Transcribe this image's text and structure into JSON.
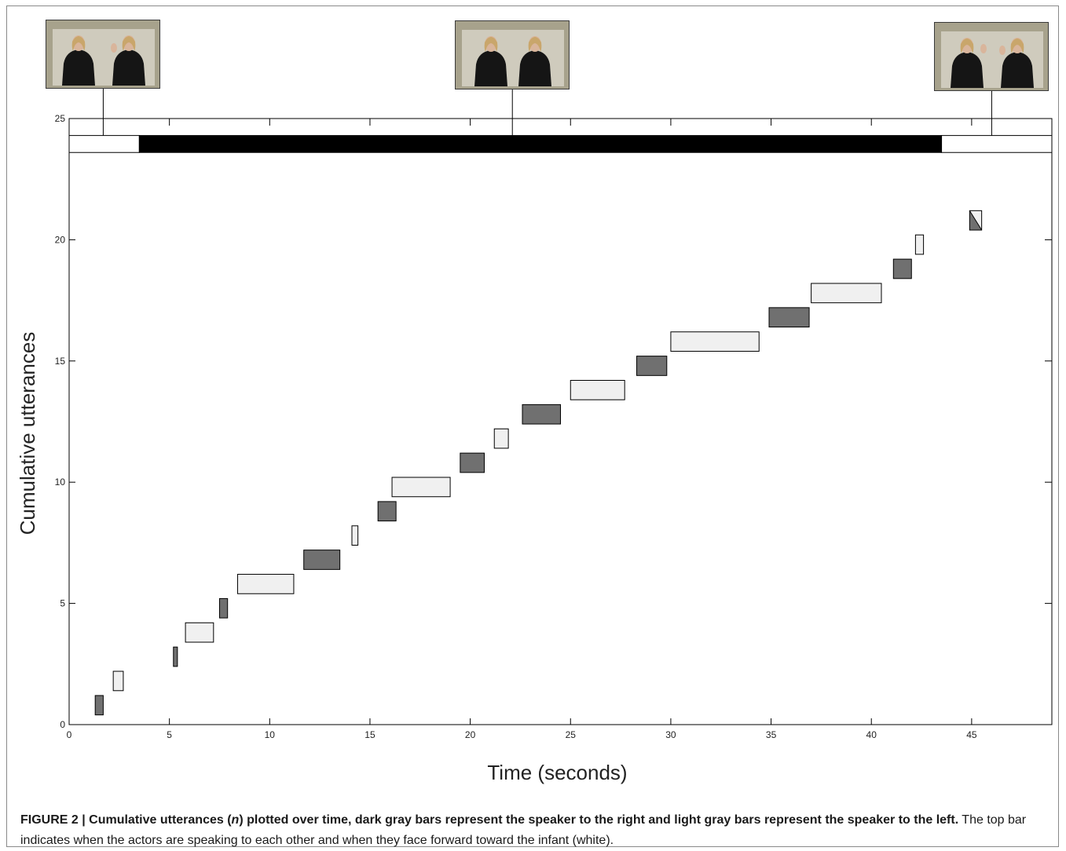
{
  "chart_data": {
    "type": "bar",
    "subtype": "floating-range",
    "xlabel": "Time (seconds)",
    "ylabel": "Cumulative utterances",
    "xlim": [
      0,
      49
    ],
    "ylim": [
      0,
      25
    ],
    "xticks": [
      0,
      5,
      10,
      15,
      20,
      25,
      30,
      35,
      40,
      45
    ],
    "yticks": [
      0,
      5,
      10,
      15,
      20,
      25
    ],
    "grid": false,
    "colors": {
      "dark": "#707070",
      "light": "#f0f0f0",
      "forward": "#ffffff",
      "each_other": "#000000"
    },
    "top_bar": {
      "y": [
        23.6,
        24.3
      ],
      "segments": [
        {
          "start": 0.0,
          "end": 3.5,
          "state": "forward"
        },
        {
          "start": 3.5,
          "end": 43.5,
          "state": "each_other"
        },
        {
          "start": 43.5,
          "end": 49.0,
          "state": "forward"
        }
      ]
    },
    "utterances": [
      {
        "n": 1,
        "start": 1.3,
        "end": 1.7,
        "speaker": "dark"
      },
      {
        "n": 2,
        "start": 2.2,
        "end": 2.7,
        "speaker": "light"
      },
      {
        "n": 3,
        "start": 5.2,
        "end": 5.4,
        "speaker": "dark"
      },
      {
        "n": 4,
        "start": 5.8,
        "end": 7.2,
        "speaker": "light"
      },
      {
        "n": 5,
        "start": 7.5,
        "end": 7.9,
        "speaker": "dark"
      },
      {
        "n": 6,
        "start": 8.4,
        "end": 11.2,
        "speaker": "light"
      },
      {
        "n": 7,
        "start": 11.7,
        "end": 13.5,
        "speaker": "dark"
      },
      {
        "n": 8,
        "start": 14.1,
        "end": 14.4,
        "speaker": "light"
      },
      {
        "n": 9,
        "start": 15.4,
        "end": 16.3,
        "speaker": "dark"
      },
      {
        "n": 10,
        "start": 16.1,
        "end": 19.0,
        "speaker": "light"
      },
      {
        "n": 11,
        "start": 19.5,
        "end": 20.7,
        "speaker": "dark"
      },
      {
        "n": 12,
        "start": 21.2,
        "end": 21.9,
        "speaker": "light"
      },
      {
        "n": 13,
        "start": 22.6,
        "end": 24.5,
        "speaker": "dark"
      },
      {
        "n": 14,
        "start": 25.0,
        "end": 27.7,
        "speaker": "light"
      },
      {
        "n": 15,
        "start": 28.3,
        "end": 29.8,
        "speaker": "dark"
      },
      {
        "n": 16,
        "start": 30.0,
        "end": 34.4,
        "speaker": "light"
      },
      {
        "n": 17,
        "start": 34.9,
        "end": 36.9,
        "speaker": "dark"
      },
      {
        "n": 18,
        "start": 37.0,
        "end": 40.5,
        "speaker": "light"
      },
      {
        "n": 19,
        "start": 41.1,
        "end": 42.0,
        "speaker": "dark"
      },
      {
        "n": 20,
        "start": 42.2,
        "end": 42.6,
        "speaker": "light"
      },
      {
        "n": 21,
        "start": 44.9,
        "end": 45.5,
        "speaker": "mixed"
      }
    ],
    "photo_markers": [
      {
        "x": 1.7,
        "scene": "forward-waving"
      },
      {
        "x": 22.1,
        "scene": "facing-each-other"
      },
      {
        "x": 46.0,
        "scene": "forward-waving"
      }
    ]
  },
  "caption": {
    "label": "FIGURE 2 | ",
    "bold_pre": "Cumulative utterances (",
    "bold_var": "n",
    "bold_post": ") plotted over time, dark gray bars represent the speaker to the right and light gray bars represent the speaker to the left.",
    "text": " The top bar indicates when the actors are speaking to each other and when they face forward toward the infant (white)."
  }
}
